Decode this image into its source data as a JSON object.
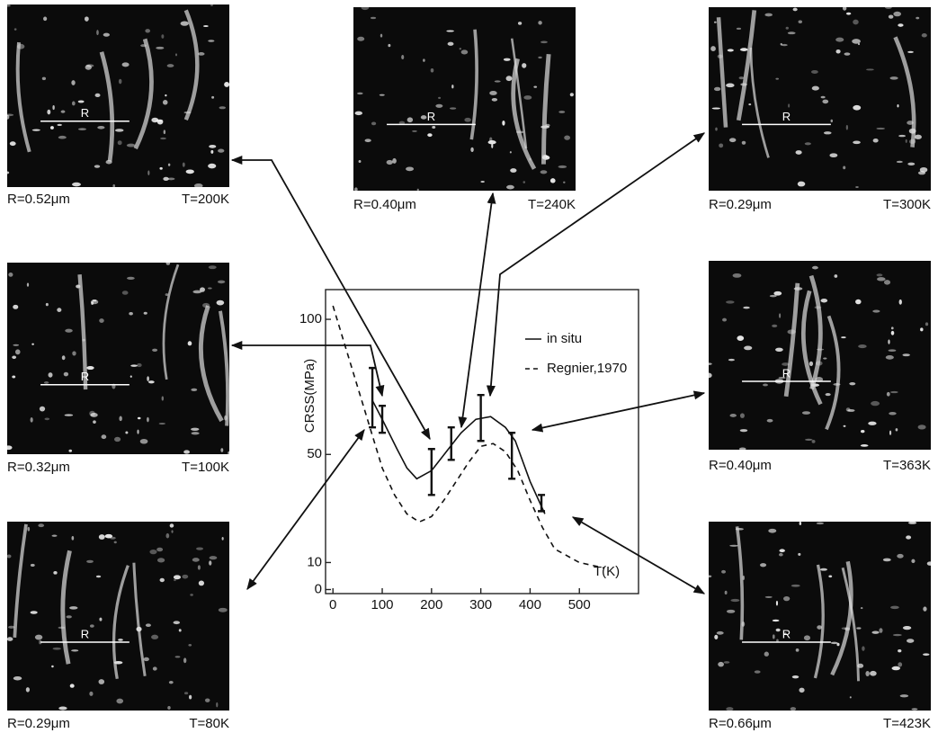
{
  "chart_data": {
    "type": "line",
    "y_label": "CRSS(MPa)",
    "x_label": "T(K)",
    "xlim": [
      -15,
      620
    ],
    "ylim": [
      -1.5,
      111
    ],
    "xticks": [
      0,
      100,
      200,
      300,
      400,
      500
    ],
    "yticks": [
      0,
      10,
      50,
      100
    ],
    "legend": "upper right",
    "series": [
      {
        "name": "in situ",
        "color": "#111",
        "dash": false,
        "x": [
          80,
          100,
          130,
          150,
          170,
          200,
          230,
          260,
          290,
          320,
          350,
          370,
          400,
          430
        ],
        "values": [
          70,
          63,
          52,
          45,
          41,
          44,
          51,
          58,
          63,
          64,
          60,
          55,
          40,
          28
        ]
      },
      {
        "name": "Regnier,1970",
        "color": "#111",
        "dash": true,
        "x": [
          0,
          25,
          50,
          75,
          100,
          125,
          150,
          175,
          200,
          225,
          250,
          275,
          300,
          325,
          350,
          375,
          400,
          425,
          450,
          500,
          550
        ],
        "values": [
          105,
          90,
          75,
          60,
          45,
          35,
          28,
          25,
          27,
          33,
          40,
          47,
          53,
          54,
          51,
          44,
          33,
          23,
          15,
          10,
          8
        ]
      }
    ],
    "error_bars": {
      "x": [
        80,
        100,
        200,
        240,
        300,
        363,
        423
      ],
      "low": [
        60,
        58,
        35,
        48,
        55,
        41,
        29
      ],
      "high": [
        82,
        68,
        52,
        60,
        72,
        58,
        35
      ]
    }
  },
  "panels": [
    {
      "marker": "R",
      "r_label": "R=0.52μm",
      "t_label": "T=200K"
    },
    {
      "marker": "R",
      "r_label": "R=0.40μm",
      "t_label": "T=240K"
    },
    {
      "marker": "R",
      "r_label": "R=0.29μm",
      "t_label": "T=300K"
    },
    {
      "marker": "R",
      "r_label": "R=0.32μm",
      "t_label": "T=100K"
    },
    {
      "marker": "R",
      "r_label": "R=0.40μm",
      "t_label": "T=363K"
    },
    {
      "marker": "R",
      "r_label": "R=0.29μm",
      "t_label": "T=80K"
    },
    {
      "marker": "R",
      "r_label": "R=0.66μm",
      "t_label": "T=423K"
    }
  ]
}
